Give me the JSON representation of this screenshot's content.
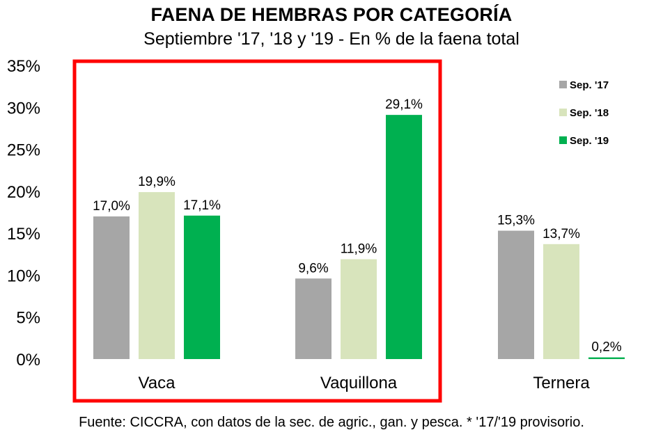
{
  "chart_data": {
    "type": "bar",
    "title": "FAENA DE HEMBRAS POR CATEGORÍA",
    "subtitle": "Septiembre '17, '18 y '19 - En % de la faena total",
    "categories": [
      "Vaca",
      "Vaquillona",
      "Ternera"
    ],
    "series": [
      {
        "name": "Sep. '17",
        "color": "#a6a6a6",
        "values": [
          17.0,
          9.6,
          15.3
        ],
        "labels": [
          "17,0%",
          "9,6%",
          "15,3%"
        ]
      },
      {
        "name": "Sep. '18",
        "color": "#d8e4bc",
        "values": [
          19.9,
          11.9,
          13.7
        ],
        "labels": [
          "19,9%",
          "11,9%",
          "13,7%"
        ]
      },
      {
        "name": "Sep. '19",
        "color": "#00b050",
        "values": [
          17.1,
          29.1,
          0.2
        ],
        "labels": [
          "17,1%",
          "29,1%",
          "0,2%"
        ]
      }
    ],
    "ylim": [
      0,
      35
    ],
    "yticks": [
      0,
      5,
      10,
      15,
      20,
      25,
      30,
      35
    ],
    "ytick_labels": [
      "0%",
      "5%",
      "10%",
      "15%",
      "20%",
      "25%",
      "30%",
      "35%"
    ],
    "legend_position": "top-right",
    "grid": false,
    "highlight": {
      "categories": [
        "Vaca",
        "Vaquillona"
      ],
      "color": "#ff0000"
    },
    "source": "Fuente: CICCRA, con datos de la sec. de agric., gan. y pesca. * '17/'19 provisorio."
  }
}
